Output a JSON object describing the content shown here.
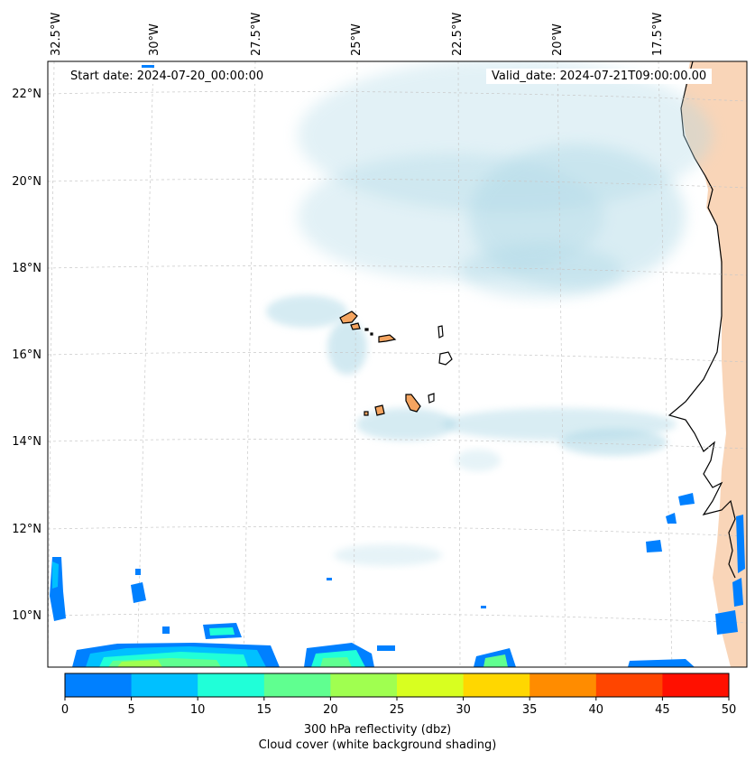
{
  "map": {
    "start_date": "Start date: 2024-07-20_00:00:00",
    "valid_date": "Valid_date: 2024-07-21T09:00:00.00",
    "lon_labels": [
      "32.5°W",
      "30°W",
      "27.5°W",
      "25°W",
      "22.5°W",
      "20°W",
      "17.5°W"
    ],
    "lat_labels": [
      "22°N",
      "20°N",
      "18°N",
      "16°N",
      "14°N",
      "12°N",
      "10°N"
    ],
    "colors": {
      "cloud": "#add8e6",
      "land": "#f4a460",
      "coast": "#000000",
      "grid": "#c8c8c8"
    }
  },
  "colorbar": {
    "ticks": [
      "0",
      "5",
      "10",
      "15",
      "20",
      "25",
      "30",
      "35",
      "40",
      "45",
      "50"
    ],
    "colors": [
      "#0080ff",
      "#00c0ff",
      "#20ffd8",
      "#60ff90",
      "#a0ff50",
      "#d8ff20",
      "#ffd700",
      "#ff8c00",
      "#ff4500",
      "#ff1000"
    ],
    "label_line1": "300 hPa reflectivity (dbz)",
    "label_line2": "Cloud cover (white background shading)"
  }
}
